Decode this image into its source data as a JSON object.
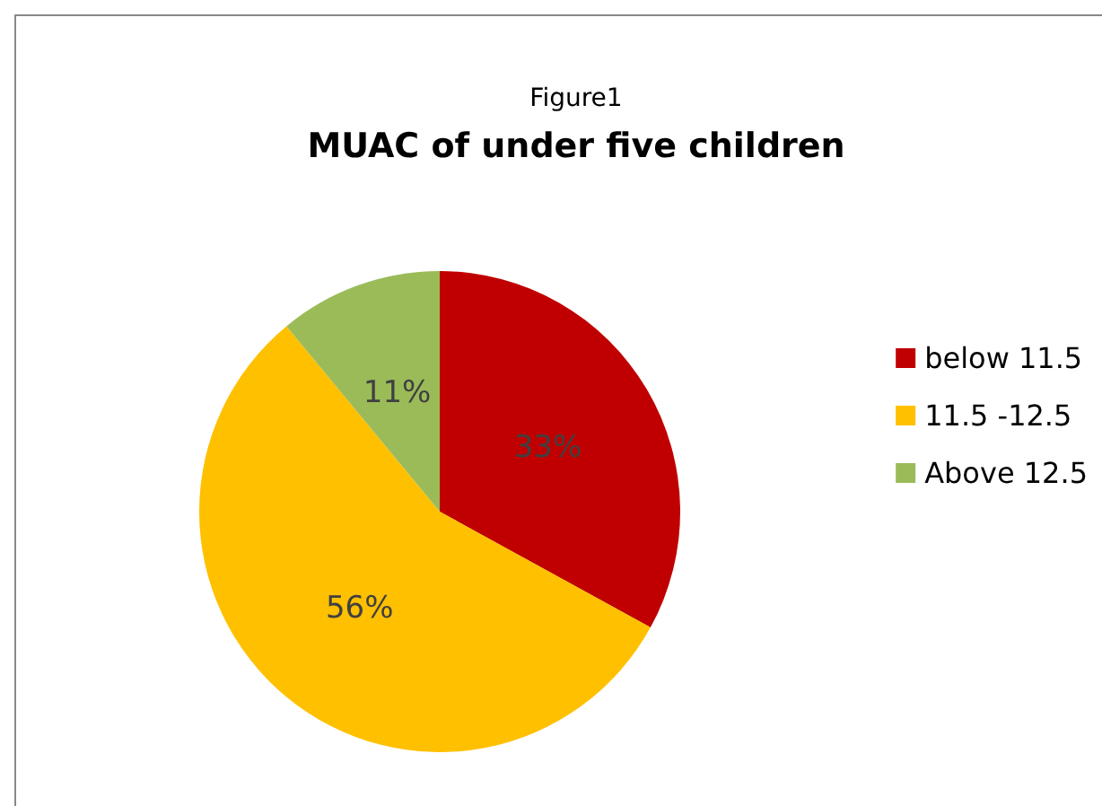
{
  "chart_data": {
    "type": "pie",
    "subtitle": "Figure1",
    "title": "MUAC of under five children",
    "categories": [
      "below 11.5",
      "11.5 -12.5",
      "Above 12.5"
    ],
    "values": [
      33,
      56,
      11
    ],
    "value_labels": [
      "33%",
      "56%",
      "11%"
    ],
    "colors": [
      "#c00000",
      "#ffc000",
      "#9bbb59"
    ],
    "legend": "right"
  }
}
